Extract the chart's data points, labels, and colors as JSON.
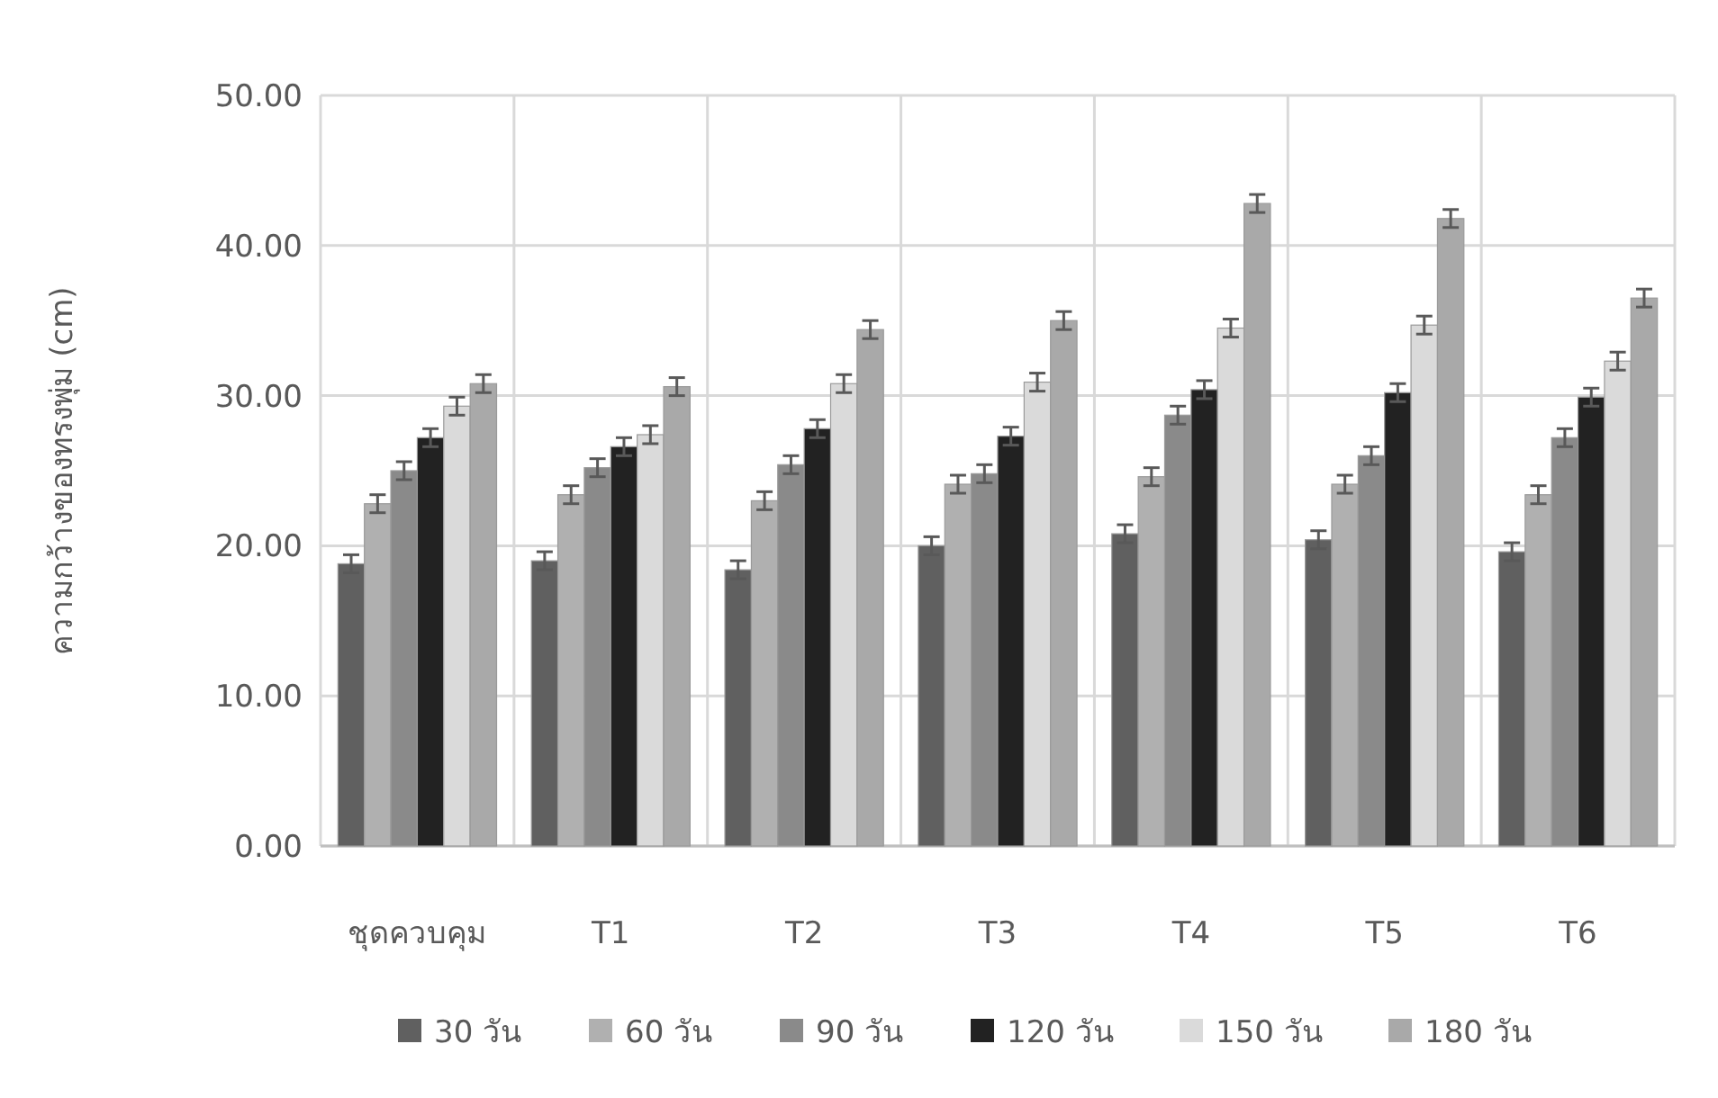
{
  "chart_data": {
    "type": "bar",
    "ylabel": "ความกว้างของทรงพุ่ม (cm)",
    "categories": [
      "ชุดควบคุม",
      "T1",
      "T2",
      "T3",
      "T4",
      "T5",
      "T6"
    ],
    "series": [
      {
        "name": "30 วัน",
        "color": "#606060",
        "values": [
          18.8,
          19.0,
          18.4,
          20.0,
          20.8,
          20.4,
          19.6
        ],
        "errors": [
          0.6,
          0.6,
          0.6,
          0.6,
          0.6,
          0.6,
          0.6
        ]
      },
      {
        "name": "60 วัน",
        "color": "#b0b0b0",
        "values": [
          22.8,
          23.4,
          23.0,
          24.1,
          24.6,
          24.1,
          23.4
        ],
        "errors": [
          0.6,
          0.6,
          0.6,
          0.6,
          0.6,
          0.6,
          0.6
        ]
      },
      {
        "name": "90 วัน",
        "color": "#8a8a8a",
        "values": [
          25.0,
          25.2,
          25.4,
          24.8,
          28.7,
          26.0,
          27.2
        ],
        "errors": [
          0.6,
          0.6,
          0.6,
          0.6,
          0.6,
          0.6,
          0.6
        ]
      },
      {
        "name": "120 วัน",
        "color": "#222222",
        "values": [
          27.2,
          26.6,
          27.8,
          27.3,
          30.4,
          30.2,
          29.9
        ],
        "errors": [
          0.6,
          0.6,
          0.6,
          0.6,
          0.6,
          0.6,
          0.6
        ]
      },
      {
        "name": "150 วัน",
        "color": "#dadada",
        "values": [
          29.3,
          27.4,
          30.8,
          30.9,
          34.5,
          34.7,
          32.3
        ],
        "errors": [
          0.6,
          0.6,
          0.6,
          0.6,
          0.6,
          0.6,
          0.6
        ]
      },
      {
        "name": "180 วัน",
        "color": "#a9a9a9",
        "values": [
          30.8,
          30.6,
          34.4,
          35.0,
          42.8,
          41.8,
          36.5
        ],
        "errors": [
          0.6,
          0.6,
          0.6,
          0.6,
          0.6,
          0.6,
          0.6
        ]
      }
    ],
    "ylim": [
      0,
      50
    ],
    "yticks": [
      {
        "value": 0,
        "label": "0.00"
      },
      {
        "value": 10,
        "label": "10.00"
      },
      {
        "value": 20,
        "label": "20.00"
      },
      {
        "value": 30,
        "label": "30.00"
      },
      {
        "value": 40,
        "label": "40.00"
      },
      {
        "value": 50,
        "label": "50.00"
      }
    ],
    "grid": true,
    "legend": "bottom"
  }
}
